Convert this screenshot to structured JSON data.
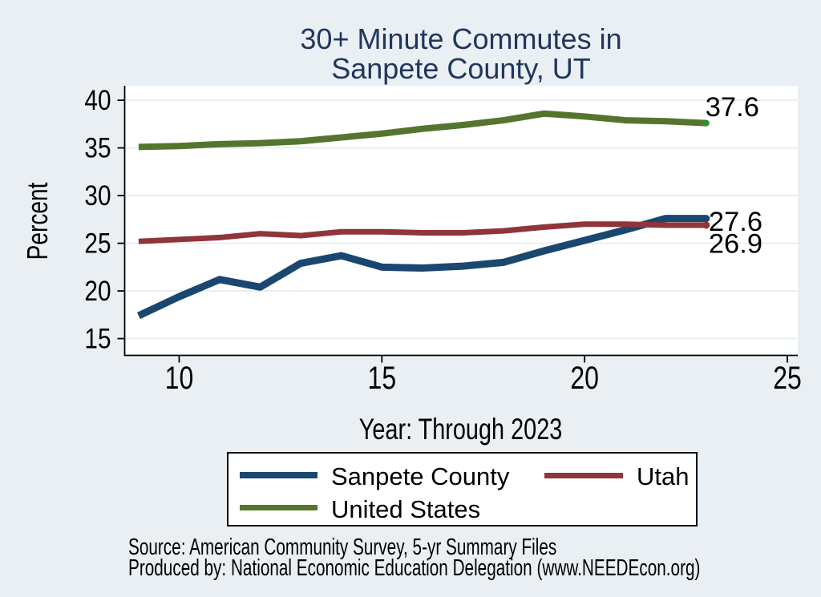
{
  "title": {
    "line1": "30+ Minute Commutes in",
    "line2": "Sanpete County, UT"
  },
  "xlabel": "Year: Through 2023",
  "ylabel": "Percent",
  "source": {
    "line1": "Source: American Community Survey, 5-yr Summary Files",
    "line2": "Produced by: National Economic Education Delegation (www.NEEDEcon.org)"
  },
  "colors": {
    "background": "#e9eff3",
    "plot_bg": "#ffffff",
    "grid": "#e3ecf1",
    "axis": "#000000",
    "title": "#21365c",
    "navy": "#1a476f",
    "maroon": "#90353b",
    "olive": "#55752f",
    "end_marker_green": "#2f8f2f"
  },
  "chart_data": {
    "type": "line",
    "title": "30+ Minute Commutes in Sanpete County, UT",
    "xlabel": "Year: Through 2023",
    "ylabel": "Percent",
    "x": [
      2009,
      2010,
      2011,
      2012,
      2013,
      2014,
      2015,
      2016,
      2017,
      2018,
      2019,
      2020,
      2021,
      2022,
      2023
    ],
    "xticks": [
      10,
      15,
      20,
      25
    ],
    "yticks": [
      15,
      20,
      25,
      30,
      35,
      40
    ],
    "xlim": [
      8.656,
      25.257
    ],
    "ylim": [
      13.24,
      41.52
    ],
    "grid": true,
    "legend_position": "bottom",
    "series": [
      {
        "name": "Sanpete County",
        "color_key": "navy",
        "values": [
          17.4,
          19.4,
          21.2,
          20.4,
          22.9,
          23.7,
          22.5,
          22.4,
          22.6,
          23.0,
          24.2,
          25.3,
          26.4,
          27.6,
          27.6
        ],
        "end_label": "27.6"
      },
      {
        "name": "Utah",
        "color_key": "maroon",
        "values": [
          25.2,
          25.4,
          25.6,
          26.0,
          25.8,
          26.2,
          26.2,
          26.1,
          26.1,
          26.3,
          26.7,
          27.0,
          27.0,
          26.9,
          26.9
        ],
        "end_label": "26.9"
      },
      {
        "name": "United States",
        "color_key": "olive",
        "values": [
          35.1,
          35.2,
          35.4,
          35.5,
          35.7,
          36.1,
          36.5,
          37.0,
          37.4,
          37.9,
          38.6,
          38.3,
          37.9,
          37.8,
          37.6
        ],
        "end_label": "37.6",
        "end_marker": true
      }
    ]
  }
}
